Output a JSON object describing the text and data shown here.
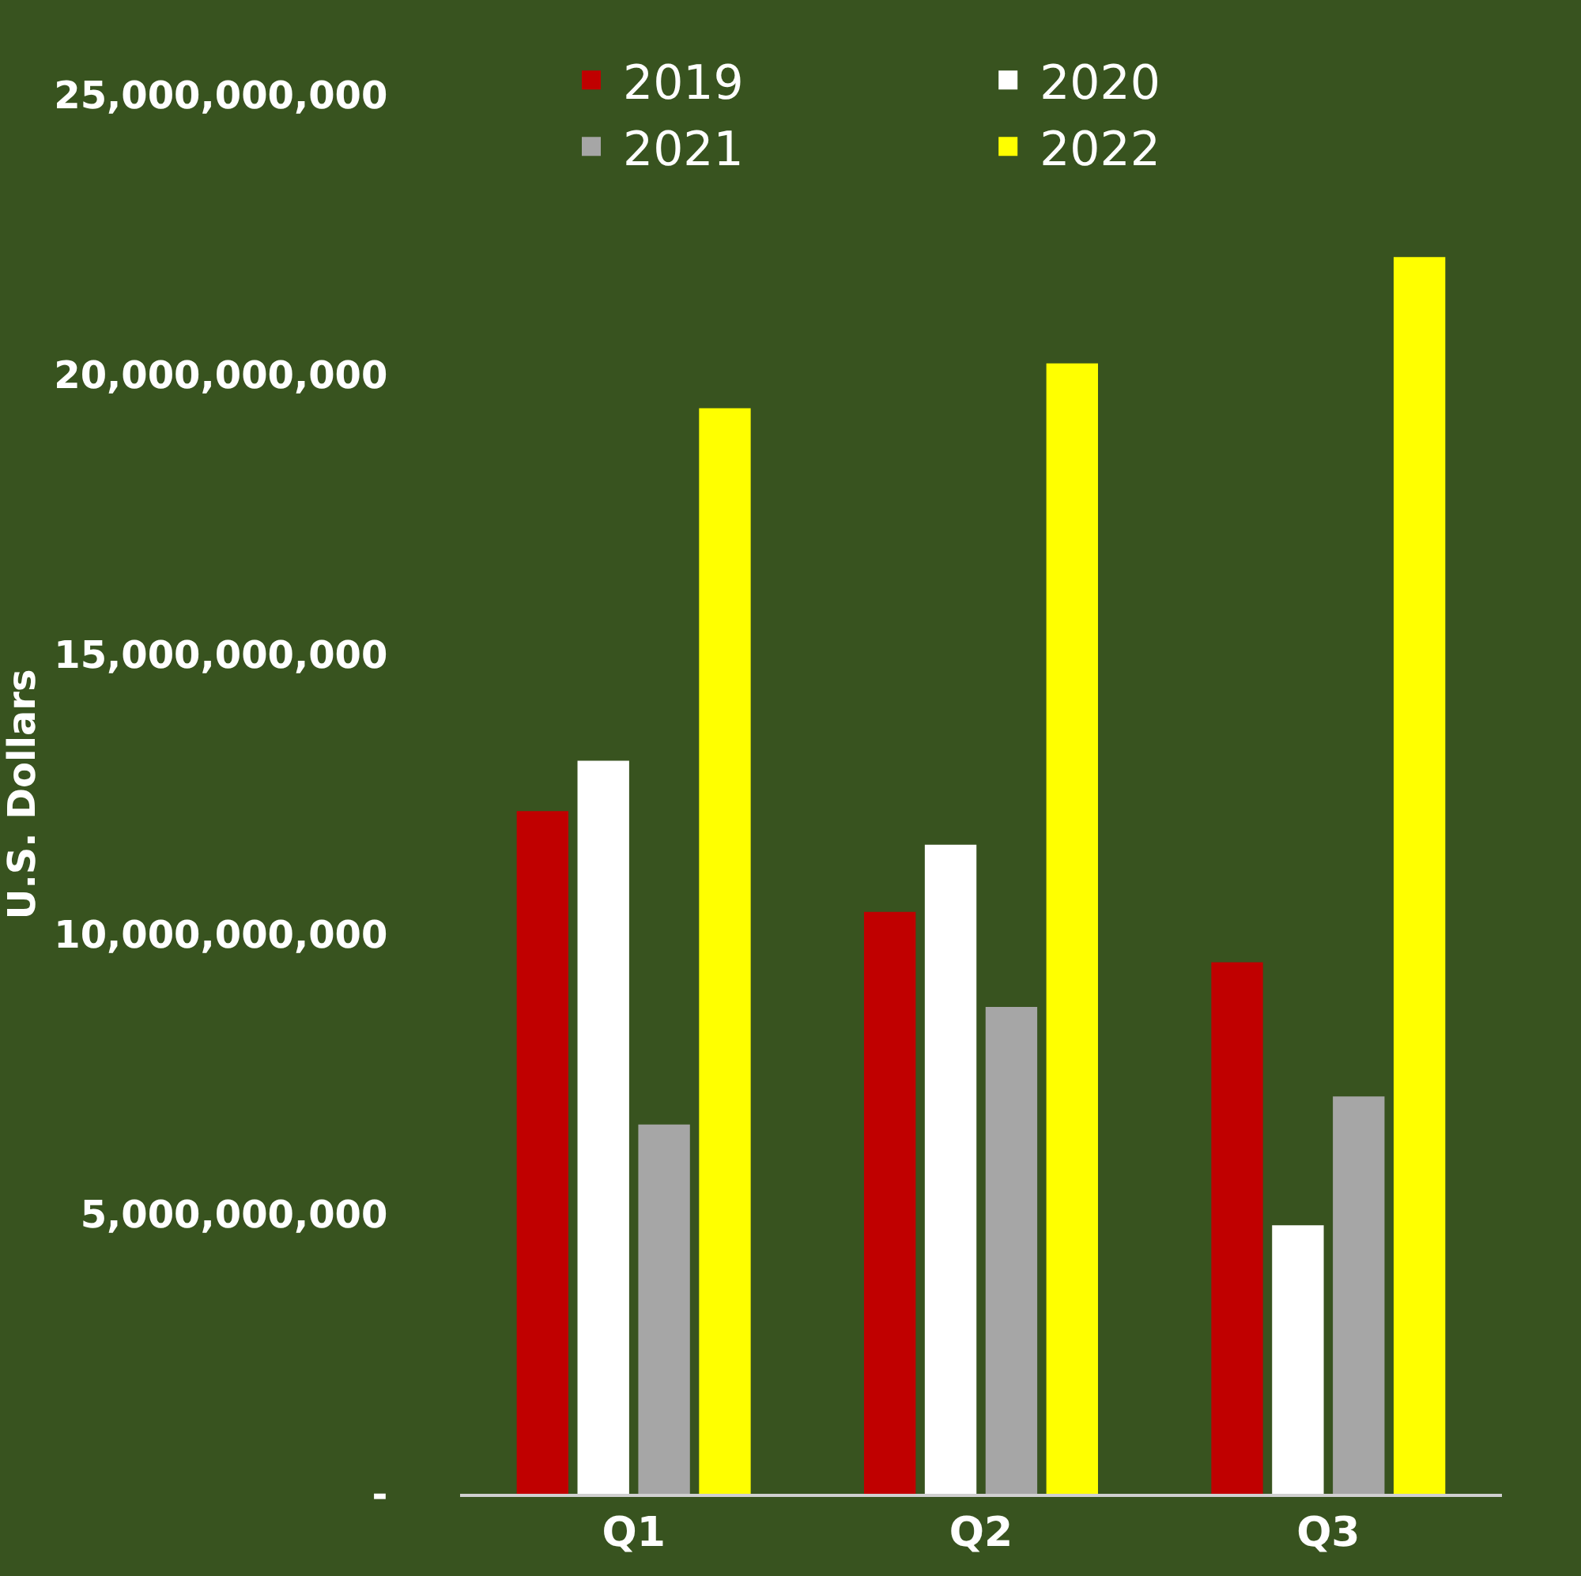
{
  "chart_data": {
    "type": "bar",
    "ylabel": "U.S. Dollars",
    "categories": [
      "Q1",
      "Q2",
      "Q3"
    ],
    "series": [
      {
        "name": "2019",
        "color": "#c00000",
        "values": [
          12200000000,
          10400000000,
          9500000000
        ]
      },
      {
        "name": "2020",
        "color": "#ffffff",
        "values": [
          13100000000,
          11600000000,
          4800000000
        ]
      },
      {
        "name": "2021",
        "color": "#a6a6a6",
        "values": [
          6600000000,
          8700000000,
          7100000000
        ]
      },
      {
        "name": "2022",
        "color": "#ffff00",
        "values": [
          19400000000,
          20200000000,
          22100000000
        ]
      }
    ],
    "ylim": [
      0,
      25000000000
    ],
    "yticks": [
      {
        "value": 0,
        "label": "-"
      },
      {
        "value": 5000000000,
        "label": "5,000,000,000"
      },
      {
        "value": 10000000000,
        "label": "10,000,000,000"
      },
      {
        "value": 15000000000,
        "label": "15,000,000,000"
      },
      {
        "value": 20000000000,
        "label": "20,000,000,000"
      },
      {
        "value": 25000000000,
        "label": "25,000,000,000"
      }
    ],
    "grid": false,
    "legend": "top"
  }
}
